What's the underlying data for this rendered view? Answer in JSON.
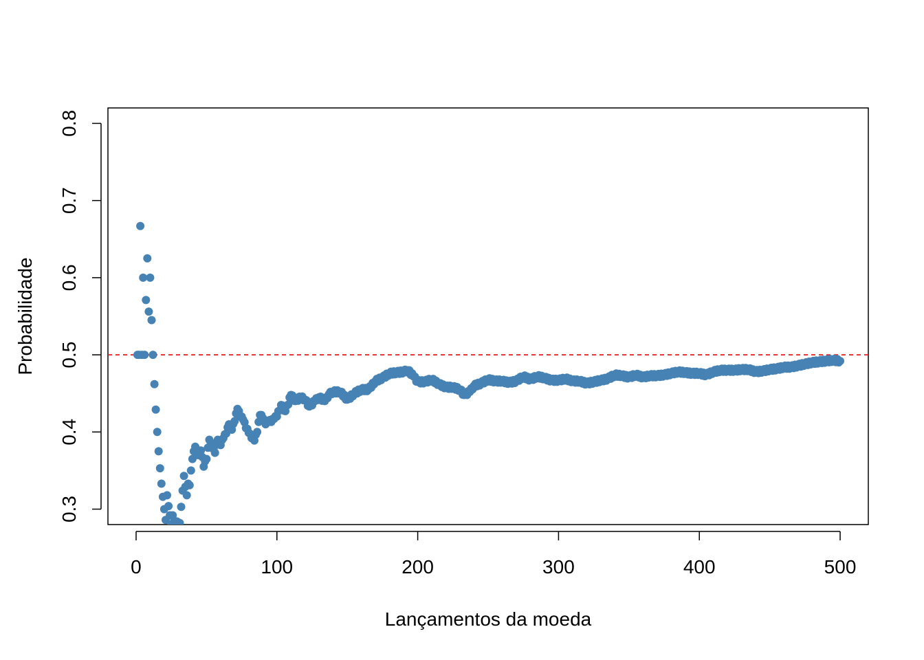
{
  "chart_data": {
    "type": "scatter",
    "title": "",
    "xlabel": "Lançamentos da moeda",
    "ylabel": "Probabilidade",
    "xlim": [
      -20,
      520
    ],
    "ylim": [
      0.28,
      0.82
    ],
    "x_ticks": [
      0,
      100,
      200,
      300,
      400,
      500
    ],
    "x_tick_labels": [
      "0",
      "100",
      "200",
      "300",
      "400",
      "500"
    ],
    "y_ticks": [
      0.3,
      0.4,
      0.5,
      0.6,
      0.7,
      0.8
    ],
    "y_tick_labels": [
      "0.3",
      "0.4",
      "0.5",
      "0.6",
      "0.7",
      "0.8"
    ],
    "grid": false,
    "legend": "none",
    "point_color": "#4682B4",
    "reference_line": {
      "y": 0.5,
      "style": "dashed",
      "color": "#E31A1C"
    },
    "series": [
      {
        "points": [
          [
            1,
            0.5
          ],
          [
            2,
            0.5
          ],
          [
            3,
            0.667
          ],
          [
            4,
            0.5
          ],
          [
            5,
            0.6
          ],
          [
            6,
            0.5
          ],
          [
            7,
            0.571
          ],
          [
            8,
            0.625
          ],
          [
            9,
            0.556
          ],
          [
            10,
            0.6
          ],
          [
            11,
            0.545
          ],
          [
            12,
            0.5
          ],
          [
            13,
            0.462
          ],
          [
            14,
            0.429
          ],
          [
            15,
            0.4
          ],
          [
            16,
            0.375
          ],
          [
            17,
            0.353
          ],
          [
            18,
            0.333
          ],
          [
            19,
            0.316
          ],
          [
            20,
            0.3
          ],
          [
            21,
            0.286
          ],
          [
            22,
            0.318
          ],
          [
            23,
            0.304
          ],
          [
            24,
            0.292
          ],
          [
            25,
            0.28
          ],
          [
            26,
            0.292
          ],
          [
            27,
            0.285
          ],
          [
            28,
            0.28
          ],
          [
            29,
            0.284
          ],
          [
            30,
            0.281
          ],
          [
            31,
            0.282
          ],
          [
            32,
            0.303
          ],
          [
            33,
            0.324
          ],
          [
            34,
            0.343
          ],
          [
            35,
            0.329
          ],
          [
            36,
            0.318
          ],
          [
            37,
            0.333
          ],
          [
            38,
            0.331
          ],
          [
            39,
            0.35
          ],
          [
            40,
            0.365
          ],
          [
            42,
            0.381
          ],
          [
            44,
            0.37
          ],
          [
            46,
            0.376
          ],
          [
            48,
            0.355
          ],
          [
            50,
            0.365
          ],
          [
            52,
            0.39
          ],
          [
            54,
            0.379
          ],
          [
            56,
            0.373
          ],
          [
            58,
            0.39
          ],
          [
            60,
            0.383
          ],
          [
            62,
            0.392
          ],
          [
            64,
            0.398
          ],
          [
            66,
            0.41
          ],
          [
            68,
            0.403
          ],
          [
            70,
            0.414
          ],
          [
            72,
            0.43
          ],
          [
            74,
            0.42
          ],
          [
            76,
            0.416
          ],
          [
            78,
            0.405
          ],
          [
            80,
            0.399
          ],
          [
            82,
            0.392
          ],
          [
            84,
            0.389
          ],
          [
            86,
            0.4
          ],
          [
            88,
            0.422
          ],
          [
            90,
            0.418
          ],
          [
            92,
            0.41
          ],
          [
            94,
            0.414
          ],
          [
            96,
            0.413
          ],
          [
            98,
            0.417
          ],
          [
            100,
            0.42
          ],
          [
            103,
            0.435
          ],
          [
            106,
            0.427
          ],
          [
            110,
            0.448
          ],
          [
            113,
            0.44
          ],
          [
            117,
            0.445
          ],
          [
            120,
            0.442
          ],
          [
            123,
            0.433
          ],
          [
            127,
            0.44
          ],
          [
            130,
            0.445
          ],
          [
            134,
            0.44
          ],
          [
            137,
            0.449
          ],
          [
            140,
            0.452
          ],
          [
            145,
            0.452
          ],
          [
            150,
            0.442
          ],
          [
            155,
            0.45
          ],
          [
            160,
            0.455
          ],
          [
            165,
            0.455
          ],
          [
            170,
            0.466
          ],
          [
            175,
            0.47
          ],
          [
            180,
            0.476
          ],
          [
            185,
            0.477
          ],
          [
            190,
            0.478
          ],
          [
            193,
            0.48
          ],
          [
            197,
            0.472
          ],
          [
            200,
            0.465
          ],
          [
            205,
            0.465
          ],
          [
            210,
            0.468
          ],
          [
            215,
            0.462
          ],
          [
            220,
            0.458
          ],
          [
            225,
            0.458
          ],
          [
            230,
            0.455
          ],
          [
            233,
            0.448
          ],
          [
            237,
            0.452
          ],
          [
            240,
            0.46
          ],
          [
            245,
            0.463
          ],
          [
            250,
            0.468
          ],
          [
            255,
            0.466
          ],
          [
            260,
            0.466
          ],
          [
            265,
            0.464
          ],
          [
            270,
            0.466
          ],
          [
            275,
            0.472
          ],
          [
            280,
            0.468
          ],
          [
            285,
            0.472
          ],
          [
            290,
            0.47
          ],
          [
            295,
            0.467
          ],
          [
            300,
            0.467
          ],
          [
            305,
            0.469
          ],
          [
            310,
            0.466
          ],
          [
            315,
            0.466
          ],
          [
            320,
            0.463
          ],
          [
            325,
            0.465
          ],
          [
            330,
            0.467
          ],
          [
            335,
            0.469
          ],
          [
            340,
            0.474
          ],
          [
            345,
            0.473
          ],
          [
            350,
            0.471
          ],
          [
            355,
            0.474
          ],
          [
            360,
            0.471
          ],
          [
            365,
            0.473
          ],
          [
            370,
            0.473
          ],
          [
            375,
            0.474
          ],
          [
            380,
            0.476
          ],
          [
            385,
            0.478
          ],
          [
            390,
            0.477
          ],
          [
            395,
            0.476
          ],
          [
            400,
            0.476
          ],
          [
            405,
            0.474
          ],
          [
            410,
            0.478
          ],
          [
            415,
            0.48
          ],
          [
            420,
            0.48
          ],
          [
            425,
            0.48
          ],
          [
            430,
            0.481
          ],
          [
            435,
            0.481
          ],
          [
            440,
            0.478
          ],
          [
            445,
            0.479
          ],
          [
            450,
            0.481
          ],
          [
            455,
            0.482
          ],
          [
            460,
            0.484
          ],
          [
            465,
            0.484
          ],
          [
            470,
            0.486
          ],
          [
            475,
            0.488
          ],
          [
            480,
            0.49
          ],
          [
            485,
            0.491
          ],
          [
            490,
            0.492
          ],
          [
            495,
            0.493
          ],
          [
            500,
            0.492
          ]
        ]
      }
    ]
  }
}
